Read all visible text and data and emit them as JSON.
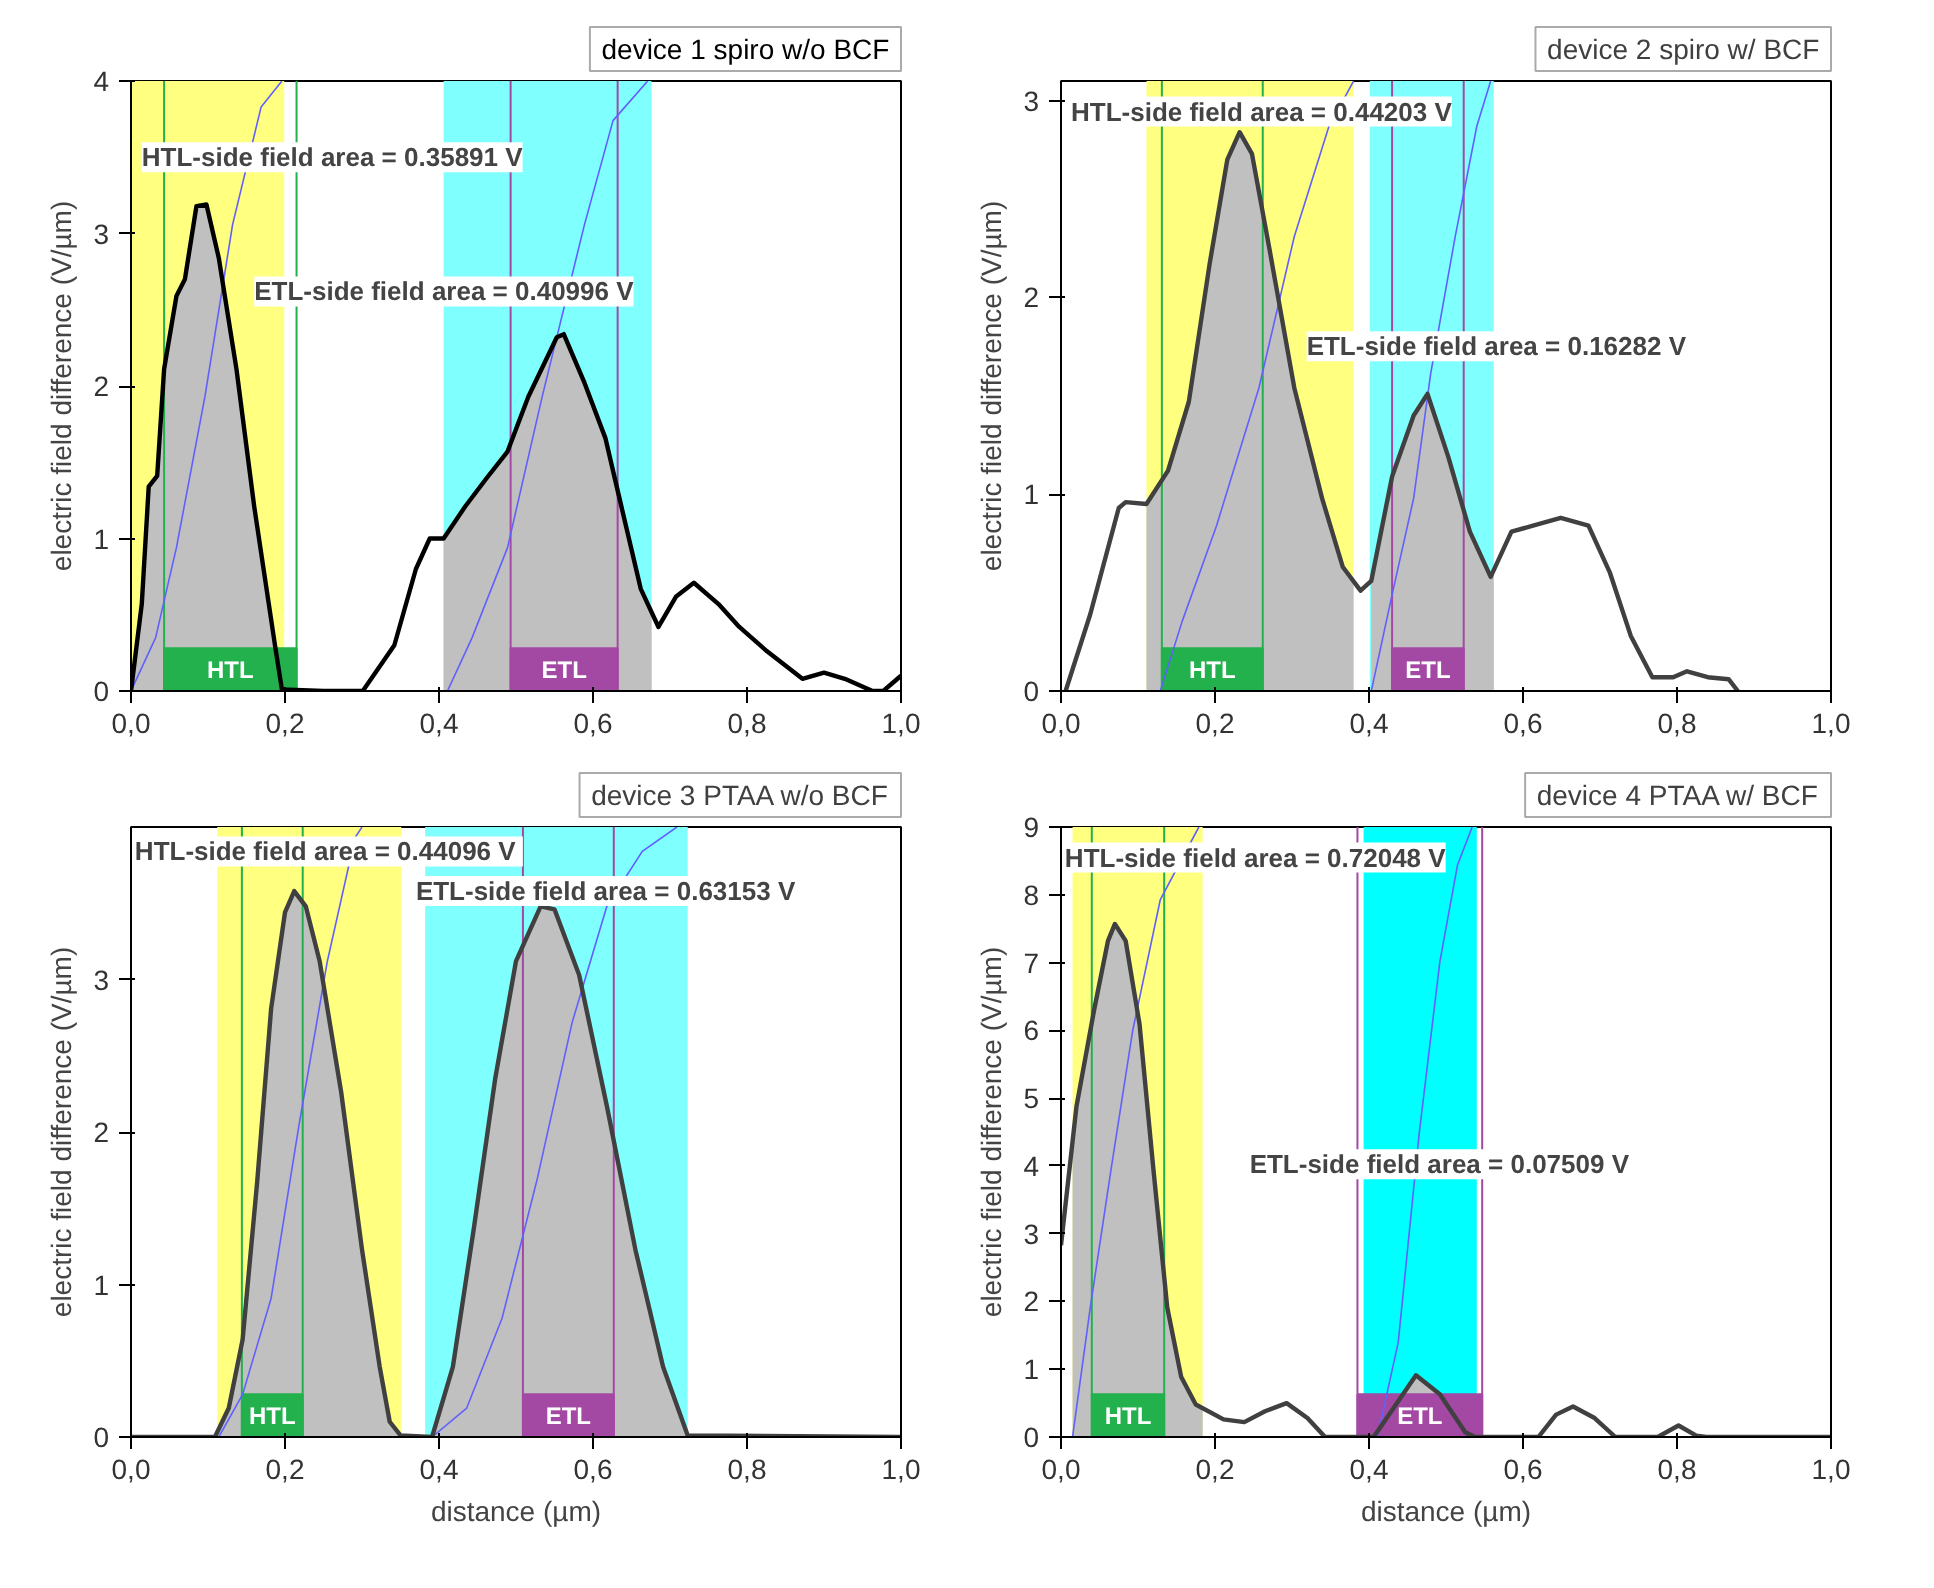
{
  "chart_data": [
    {
      "type": "line",
      "ylabel": "electric field difference (V/µm)",
      "xlim": [
        0,
        1
      ],
      "ylim": [
        0,
        4
      ],
      "xticks": [
        {
          "value": 0,
          "label": "0,0"
        },
        {
          "value": 0.2,
          "label": "0,2"
        },
        {
          "value": 0.4,
          "label": "0,4"
        },
        {
          "value": 0.6,
          "label": "0,6"
        },
        {
          "value": 0.8,
          "label": "0,8"
        },
        {
          "value": 1,
          "label": "1,0"
        }
      ],
      "yticks": [
        0,
        1,
        2,
        3,
        4
      ],
      "legend": "top right",
      "grid": false,
      "bands": [
        {
          "axis": "x",
          "from": 0,
          "to": 0.199,
          "color": "#ffff80"
        },
        {
          "axis": "x",
          "from": 0.406,
          "to": 0.676,
          "color": "#80ffff"
        },
        {
          "axis": "x",
          "from": 0.043,
          "to": 0.215,
          "label": "HTL",
          "color": "#22b14c"
        },
        {
          "axis": "x",
          "from": 0.493,
          "to": 0.632,
          "label": "ETL",
          "color": "#a349a4"
        }
      ],
      "ref_lines": [
        {
          "axis": "x",
          "value": 0.043,
          "color": "#22b14c"
        },
        {
          "axis": "x",
          "value": 0.215,
          "color": "#22b14c"
        },
        {
          "axis": "x",
          "value": 0.493,
          "color": "#a349a4"
        },
        {
          "axis": "x",
          "value": 0.632,
          "color": "#a349a4"
        }
      ],
      "series": [
        {
          "type": "area",
          "color": "#c0c0c0",
          "x": [
            0,
            0.014,
            0.023,
            0.034,
            0.043,
            0.059,
            0.07,
            0.085,
            0.098,
            0.114,
            0.137,
            0.16,
            0.187,
            0.196,
            0.199
          ],
          "values": [
            0,
            0.57,
            1.34,
            1.41,
            2.11,
            2.59,
            2.7,
            3.18,
            3.19,
            2.84,
            2.11,
            1.21,
            0.3,
            0.01,
            0
          ]
        },
        {
          "type": "area",
          "color": "#c0c0c0",
          "x": [
            0.406,
            0.434,
            0.461,
            0.489,
            0.516,
            0.553,
            0.562,
            0.589,
            0.616,
            0.635,
            0.662,
            0.676
          ],
          "values": [
            1.0,
            1.21,
            1.39,
            1.57,
            1.93,
            2.32,
            2.34,
            2.02,
            1.66,
            1.25,
            0.67,
            0.5
          ]
        },
        {
          "color": "#6060ff",
          "x": [
            0,
            0.032,
            0.059,
            0.096,
            0.132,
            0.169,
            0.196
          ],
          "values": [
            0,
            0.35,
            0.94,
            1.93,
            3.06,
            3.83,
            4
          ]
        },
        {
          "color": "#6060ff",
          "x": [
            0.411,
            0.443,
            0.489,
            0.534,
            0.589,
            0.626,
            0.671
          ],
          "values": [
            0,
            0.35,
            0.94,
            1.93,
            3.06,
            3.74,
            4
          ]
        },
        {
          "name": "device 1 spiro w/o BCF",
          "color": "#000000",
          "x": [
            0,
            0.014,
            0.023,
            0.034,
            0.043,
            0.059,
            0.07,
            0.085,
            0.098,
            0.114,
            0.137,
            0.16,
            0.187,
            0.196,
            0.25,
            0.301,
            0.342,
            0.37,
            0.388,
            0.406,
            0.434,
            0.461,
            0.489,
            0.516,
            0.553,
            0.562,
            0.589,
            0.616,
            0.635,
            0.662,
            0.685,
            0.708,
            0.731,
            0.763,
            0.79,
            0.826,
            0.872,
            0.9,
            0.927,
            0.963,
            0.977,
            1.0
          ],
          "values": [
            0,
            0.57,
            1.34,
            1.41,
            2.11,
            2.59,
            2.7,
            3.18,
            3.19,
            2.84,
            2.11,
            1.21,
            0.3,
            0.01,
            0,
            0,
            0.3,
            0.8,
            1.0,
            1.0,
            1.21,
            1.39,
            1.57,
            1.93,
            2.32,
            2.34,
            2.02,
            1.66,
            1.25,
            0.67,
            0.42,
            0.62,
            0.71,
            0.57,
            0.42,
            0.26,
            0.08,
            0.12,
            0.08,
            0,
            0,
            0.1
          ]
        }
      ],
      "annotations": [
        "HTL-side field area = 0.35891 V",
        "ETL-side field area = 0.40996 V"
      ]
    },
    {
      "type": "line",
      "ylabel": "electric field difference (V/µm)",
      "xlim": [
        0,
        1
      ],
      "ylim": [
        0,
        3.1
      ],
      "xticks": [
        {
          "value": 0,
          "label": "0,0"
        },
        {
          "value": 0.2,
          "label": "0,2"
        },
        {
          "value": 0.4,
          "label": "0,4"
        },
        {
          "value": 0.6,
          "label": "0,6"
        },
        {
          "value": 0.8,
          "label": "0,8"
        },
        {
          "value": 1,
          "label": "1,0"
        }
      ],
      "yticks": [
        0,
        1,
        2,
        3
      ],
      "legend": "top right",
      "grid": false,
      "bands": [
        {
          "axis": "x",
          "from": 0.111,
          "to": 0.38,
          "color": "#ffff80"
        },
        {
          "axis": "x",
          "from": 0.401,
          "to": 0.562,
          "color": "#80ffff"
        },
        {
          "axis": "x",
          "from": 0.131,
          "to": 0.262,
          "label": "HTL",
          "color": "#22b14c"
        },
        {
          "axis": "x",
          "from": 0.43,
          "to": 0.523,
          "label": "ETL",
          "color": "#a349a4"
        }
      ],
      "ref_lines": [
        {
          "axis": "x",
          "value": 0.131,
          "color": "#22b14c"
        },
        {
          "axis": "x",
          "value": 0.262,
          "color": "#22b14c"
        },
        {
          "axis": "x",
          "value": 0.43,
          "color": "#a349a4"
        },
        {
          "axis": "x",
          "value": 0.523,
          "color": "#a349a4"
        }
      ],
      "series": [
        {
          "type": "area",
          "color": "#c0c0c0",
          "x": [
            0.111,
            0.139,
            0.166,
            0.193,
            0.216,
            0.232,
            0.248,
            0.271,
            0.303,
            0.339,
            0.366,
            0.38
          ],
          "values": [
            0.95,
            1.12,
            1.47,
            2.17,
            2.7,
            2.84,
            2.73,
            2.24,
            1.54,
            0.98,
            0.63,
            0.55
          ]
        },
        {
          "type": "area",
          "color": "#c0c0c0",
          "x": [
            0.403,
            0.43,
            0.458,
            0.476,
            0.503,
            0.531,
            0.558,
            0.562
          ],
          "values": [
            0.56,
            1.09,
            1.4,
            1.51,
            1.19,
            0.81,
            0.58,
            0.6
          ]
        },
        {
          "color": "#6060ff",
          "x": [
            0.129,
            0.157,
            0.202,
            0.257,
            0.303,
            0.348,
            0.38
          ],
          "values": [
            0,
            0.35,
            0.84,
            1.54,
            2.31,
            2.87,
            3.1
          ]
        },
        {
          "color": "#6060ff",
          "x": [
            0.403,
            0.43,
            0.458,
            0.48,
            0.512,
            0.54,
            0.558
          ],
          "values": [
            0,
            0.49,
            0.98,
            1.61,
            2.31,
            2.87,
            3.1
          ]
        },
        {
          "name": "device 2 spiro w/ BCF",
          "color": "#404040",
          "x": [
            0.006,
            0.038,
            0.075,
            0.084,
            0.111,
            0.139,
            0.166,
            0.193,
            0.216,
            0.232,
            0.248,
            0.271,
            0.303,
            0.339,
            0.366,
            0.389,
            0.403,
            0.43,
            0.458,
            0.476,
            0.503,
            0.531,
            0.558,
            0.585,
            0.613,
            0.649,
            0.685,
            0.713,
            0.74,
            0.768,
            0.795,
            0.813,
            0.84,
            0.867,
            0.879
          ],
          "values": [
            0,
            0.39,
            0.93,
            0.96,
            0.95,
            1.12,
            1.47,
            2.17,
            2.7,
            2.84,
            2.73,
            2.24,
            1.54,
            0.98,
            0.63,
            0.51,
            0.56,
            1.09,
            1.4,
            1.51,
            1.19,
            0.81,
            0.58,
            0.81,
            0.84,
            0.88,
            0.84,
            0.6,
            0.28,
            0.07,
            0.07,
            0.1,
            0.07,
            0.06,
            0
          ]
        }
      ],
      "annotations": [
        "HTL-side field area = 0.44203 V",
        "ETL-side field area = 0.16282 V"
      ]
    },
    {
      "type": "line",
      "xlabel": "distance (µm)",
      "ylabel": "electric field difference (V/µm)",
      "xlim": [
        0,
        1
      ],
      "ylim": [
        0,
        4
      ],
      "xticks": [
        {
          "value": 0,
          "label": "0,0"
        },
        {
          "value": 0.2,
          "label": "0,2"
        },
        {
          "value": 0.4,
          "label": "0,4"
        },
        {
          "value": 0.6,
          "label": "0,6"
        },
        {
          "value": 0.8,
          "label": "0,8"
        },
        {
          "value": 1,
          "label": "1,0"
        }
      ],
      "yticks": [
        0,
        1,
        2,
        3
      ],
      "legend": "top right",
      "grid": false,
      "bands": [
        {
          "axis": "x",
          "from": 0.112,
          "to": 0.351,
          "color": "#ffff80"
        },
        {
          "axis": "x",
          "from": 0.382,
          "to": 0.723,
          "color": "#80ffff"
        },
        {
          "axis": "x",
          "from": 0.144,
          "to": 0.223,
          "label": "HTL",
          "color": "#22b14c"
        },
        {
          "axis": "x",
          "from": 0.509,
          "to": 0.627,
          "label": "ETL",
          "color": "#a349a4"
        }
      ],
      "ref_lines": [
        {
          "axis": "x",
          "value": 0.144,
          "color": "#22b14c"
        },
        {
          "axis": "x",
          "value": 0.223,
          "color": "#22b14c"
        },
        {
          "axis": "x",
          "value": 0.509,
          "color": "#a349a4"
        },
        {
          "axis": "x",
          "value": 0.627,
          "color": "#a349a4"
        }
      ],
      "series": [
        {
          "type": "area",
          "color": "#c0c0c0",
          "x": [
            0.112,
            0.127,
            0.145,
            0.164,
            0.182,
            0.2,
            0.212,
            0.227,
            0.245,
            0.273,
            0.3,
            0.323,
            0.336,
            0.35
          ],
          "values": [
            0.01,
            0.19,
            0.64,
            1.68,
            2.81,
            3.44,
            3.58,
            3.48,
            3.12,
            2.26,
            1.23,
            0.46,
            0.1,
            0.01
          ]
        },
        {
          "type": "area",
          "color": "#c0c0c0",
          "x": [
            0.391,
            0.418,
            0.445,
            0.473,
            0.5,
            0.532,
            0.55,
            0.582,
            0.618,
            0.655,
            0.691,
            0.723
          ],
          "values": [
            0,
            0.46,
            1.36,
            2.35,
            3.12,
            3.48,
            3.46,
            3.03,
            2.17,
            1.23,
            0.46,
            0.01
          ]
        },
        {
          "color": "#6060ff",
          "x": [
            0.114,
            0.145,
            0.182,
            0.218,
            0.255,
            0.291,
            0.3
          ],
          "values": [
            0,
            0.28,
            0.91,
            2.04,
            3.12,
            3.93,
            4.0
          ]
        },
        {
          "color": "#6060ff",
          "x": [
            0.391,
            0.436,
            0.482,
            0.527,
            0.573,
            0.618,
            0.664,
            0.709
          ],
          "values": [
            0,
            0.19,
            0.78,
            1.68,
            2.72,
            3.48,
            3.84,
            4.0
          ]
        },
        {
          "name": "device 3 PTAA w/o BCF",
          "color": "#404040",
          "x": [
            0,
            0.109,
            0.127,
            0.145,
            0.164,
            0.182,
            0.2,
            0.212,
            0.227,
            0.245,
            0.273,
            0.3,
            0.323,
            0.336,
            0.35,
            0.391,
            0.418,
            0.445,
            0.473,
            0.5,
            0.532,
            0.55,
            0.582,
            0.618,
            0.655,
            0.691,
            0.723,
            1.0
          ],
          "values": [
            0,
            0,
            0.19,
            0.64,
            1.68,
            2.81,
            3.44,
            3.58,
            3.48,
            3.12,
            2.26,
            1.23,
            0.46,
            0.1,
            0.01,
            0,
            0.46,
            1.36,
            2.35,
            3.12,
            3.48,
            3.46,
            3.03,
            2.17,
            1.23,
            0.46,
            0.01,
            0
          ]
        }
      ],
      "annotations": [
        "HTL-side field area  = 0.44096 V",
        "ETL-side field area = 0.63153 V"
      ]
    },
    {
      "type": "line",
      "xlabel": "distance (µm)",
      "ylabel": "electric field difference (V/µm)",
      "xlim": [
        0,
        1
      ],
      "ylim": [
        0,
        9
      ],
      "xticks": [
        {
          "value": 0,
          "label": "0,0"
        },
        {
          "value": 0.2,
          "label": "0,2"
        },
        {
          "value": 0.4,
          "label": "0,4"
        },
        {
          "value": 0.6,
          "label": "0,6"
        },
        {
          "value": 0.8,
          "label": "0,8"
        },
        {
          "value": 1,
          "label": "1,0"
        }
      ],
      "yticks": [
        0,
        1,
        2,
        3,
        4,
        5,
        6,
        7,
        8,
        9
      ],
      "legend": "top right",
      "grid": false,
      "bands": [
        {
          "axis": "x",
          "from": 0.015,
          "to": 0.184,
          "color": "#ffff80"
        },
        {
          "axis": "x",
          "from": 0.393,
          "to": 0.54,
          "color": "#00ffff"
        },
        {
          "axis": "x",
          "from": 0.04,
          "to": 0.134,
          "label": "HTL",
          "color": "#22b14c"
        },
        {
          "axis": "x",
          "from": 0.385,
          "to": 0.547,
          "label": "ETL",
          "color": "#a349a4"
        }
      ],
      "ref_lines": [
        {
          "axis": "x",
          "value": 0.04,
          "color": "#22b14c"
        },
        {
          "axis": "x",
          "value": 0.134,
          "color": "#22b14c"
        },
        {
          "axis": "x",
          "value": 0.385,
          "color": "#a349a4"
        },
        {
          "axis": "x",
          "value": 0.547,
          "color": "#a349a4"
        }
      ],
      "series": [
        {
          "type": "area",
          "color": "#c0c0c0",
          "x": [
            0.015,
            0.02,
            0.043,
            0.061,
            0.07,
            0.084,
            0.102,
            0.12,
            0.138,
            0.156,
            0.175,
            0.184
          ],
          "values": [
            4.36,
            4.87,
            6.3,
            7.32,
            7.57,
            7.32,
            6.09,
            3.95,
            1.91,
            0.89,
            0.48,
            0.4
          ]
        },
        {
          "type": "area",
          "color": "#c0c0c0",
          "x": [
            0.406,
            0.429,
            0.461,
            0.492,
            0.525,
            0.538
          ],
          "values": [
            0,
            null,
            0.91,
            0.63,
            null,
            0
          ]
        },
        {
          "color": "#6060ff",
          "x": [
            0.015,
            0.038,
            0.065,
            0.093,
            0.129,
            0.156,
            0.179
          ],
          "values": [
            0,
            1.91,
            3.95,
            5.99,
            7.93,
            null,
            9
          ]
        },
        {
          "color": "#6060ff",
          "x": [
            0.411,
            0.438,
            0.465,
            0.492,
            0.515,
            0.534
          ],
          "values": [
            0,
            1.4,
            4.46,
            7.01,
            8.44,
            9
          ]
        },
        {
          "name": "device 4 PTAA w/ BCF",
          "color": "#404040",
          "x": [
            0,
            0.02,
            0.043,
            0.061,
            0.07,
            0.084,
            0.102,
            0.12,
            0.138,
            0.156,
            0.175,
            0.211,
            0.238,
            0.265,
            0.293,
            0.32,
            0.343,
            0.406,
            0.429,
            0.461,
            0.492,
            0.525,
            0.538,
            0.62,
            0.643,
            0.665,
            0.693,
            0.72,
            0.775,
            0.802,
            0.825,
            0.838,
            1.0
          ],
          "values": [
            2.83,
            4.87,
            6.3,
            7.32,
            7.57,
            7.32,
            6.09,
            3.95,
            1.91,
            0.89,
            0.48,
            0.26,
            0.22,
            0.38,
            0.5,
            0.28,
            0,
            0,
            0.38,
            0.91,
            0.63,
            0.07,
            0,
            0,
            0.33,
            0.45,
            0.28,
            0,
            0,
            0.17,
            0.02,
            0,
            0
          ]
        }
      ],
      "annotations": [
        "HTL-side field area = 0.72048 V",
        "ETL-side field area = 0.07509 V"
      ]
    }
  ]
}
